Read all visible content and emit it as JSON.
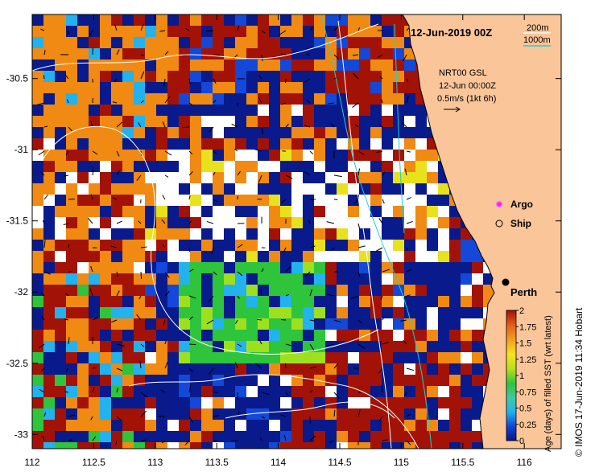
{
  "map": {
    "title": "12-Jun-2019 00Z",
    "product_label": "NRT00 GSL",
    "product_time": "12-Jun 00:00Z",
    "current_scale_label": "0.5m/s (1kt 6h)",
    "credit": "© IMOS 17-Jun-2019 11:34 Hobart",
    "colors": {
      "land": "#f9c599",
      "ocean_navy": "#081a8c",
      "contour_200": "#ffffff",
      "contour_1000": "#1fd0cf"
    }
  },
  "isobath_legend": {
    "item_200": "200m",
    "item_1000": "1000m"
  },
  "markers": {
    "argo": "Argo",
    "ship": "Ship",
    "city": "Perth"
  },
  "axes": {
    "x_ticks": [
      "112",
      "112.5",
      "113",
      "113.5",
      "114",
      "114.5",
      "115",
      "115.5",
      "116"
    ],
    "x_values": [
      112,
      112.5,
      113,
      113.5,
      114,
      114.5,
      115,
      115.5,
      116
    ],
    "y_ticks": [
      "-30.5",
      "-31",
      "-31.5",
      "-32",
      "-32.5",
      "-33"
    ],
    "y_values": [
      -30.5,
      -31,
      -31.5,
      -32,
      -32.5,
      -33
    ],
    "lon_range": [
      112,
      116.3
    ],
    "lat_range": [
      -30.05,
      -33.1
    ]
  },
  "colorbar": {
    "title": "Age (days) of filled SST (wrt latest)",
    "tick_labels": [
      "0",
      "0.25",
      "0.5",
      "0.75",
      "1",
      "1.25",
      "1.5",
      "1.75",
      "2"
    ],
    "tick_values": [
      0,
      0.25,
      0.5,
      0.75,
      1,
      1.25,
      1.5,
      1.75,
      2
    ],
    "range": [
      0,
      2
    ],
    "stops": [
      "#0a1483",
      "#0f46d8",
      "#22b2ee",
      "#3ec9a6",
      "#2ec43c",
      "#b5e01e",
      "#f7e51c",
      "#f3a31c",
      "#e66218",
      "#a31207"
    ]
  }
}
